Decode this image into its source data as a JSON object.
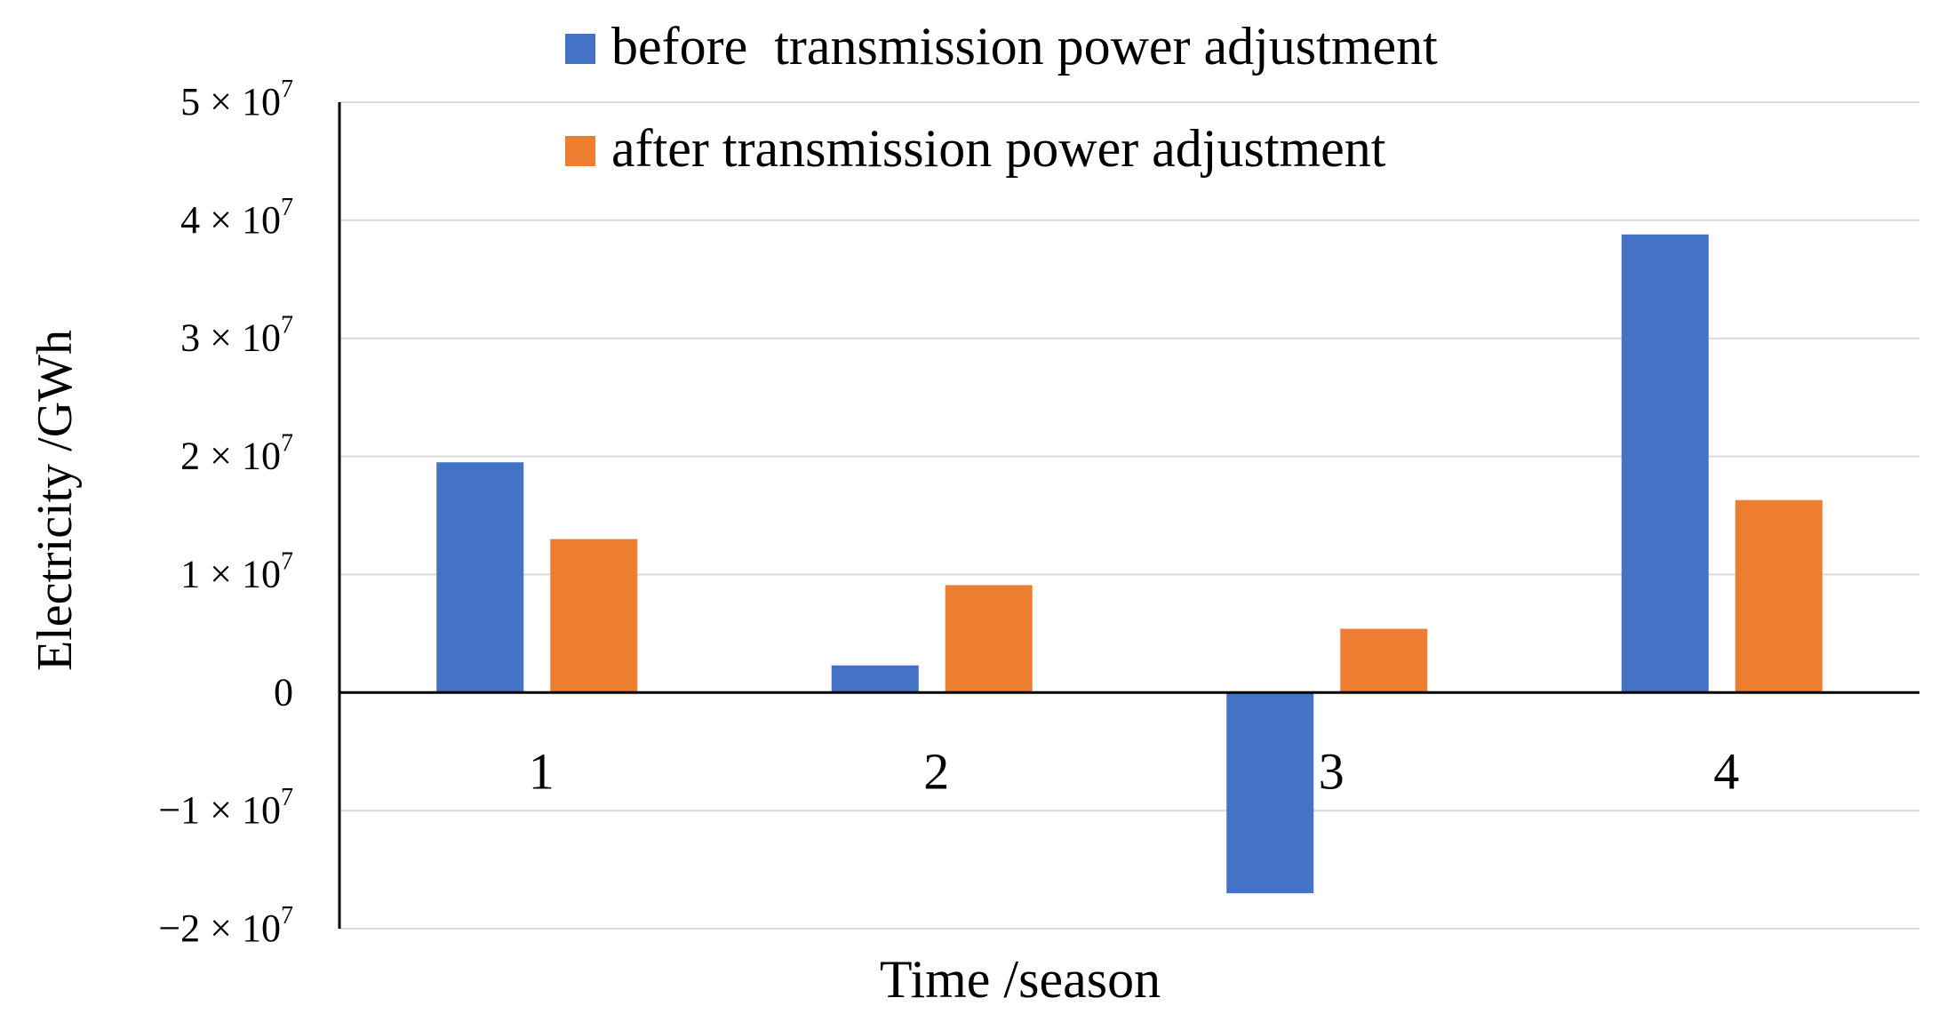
{
  "chart_data": {
    "type": "bar",
    "title": "",
    "xlabel": "Time /season",
    "ylabel": "Electricity /GWh",
    "categories": [
      "1",
      "2",
      "3",
      "4"
    ],
    "series": [
      {
        "name": "before  transmission power adjustment",
        "color": "#4472C4",
        "values": [
          19500000,
          2300000,
          -17000000,
          38800000
        ]
      },
      {
        "name": "after transmission power adjustment",
        "color": "#ED7D31",
        "values": [
          13000000,
          9100000,
          5400000,
          16300000
        ]
      }
    ],
    "ylim": [
      -20000000,
      50000000
    ],
    "yticks": [
      {
        "value": 50000000,
        "coef": "5",
        "exp": "7"
      },
      {
        "value": 40000000,
        "coef": "4",
        "exp": "7"
      },
      {
        "value": 30000000,
        "coef": "3",
        "exp": "7"
      },
      {
        "value": 20000000,
        "coef": "2",
        "exp": "7"
      },
      {
        "value": 10000000,
        "coef": "1",
        "exp": "7"
      },
      {
        "value": 0,
        "coef": "0",
        "exp": ""
      },
      {
        "value": -10000000,
        "coef": "−1",
        "exp": "7"
      },
      {
        "value": -20000000,
        "coef": "−2",
        "exp": "7"
      }
    ],
    "tick_base": "× 10",
    "grid": true,
    "legend_position": "top"
  }
}
